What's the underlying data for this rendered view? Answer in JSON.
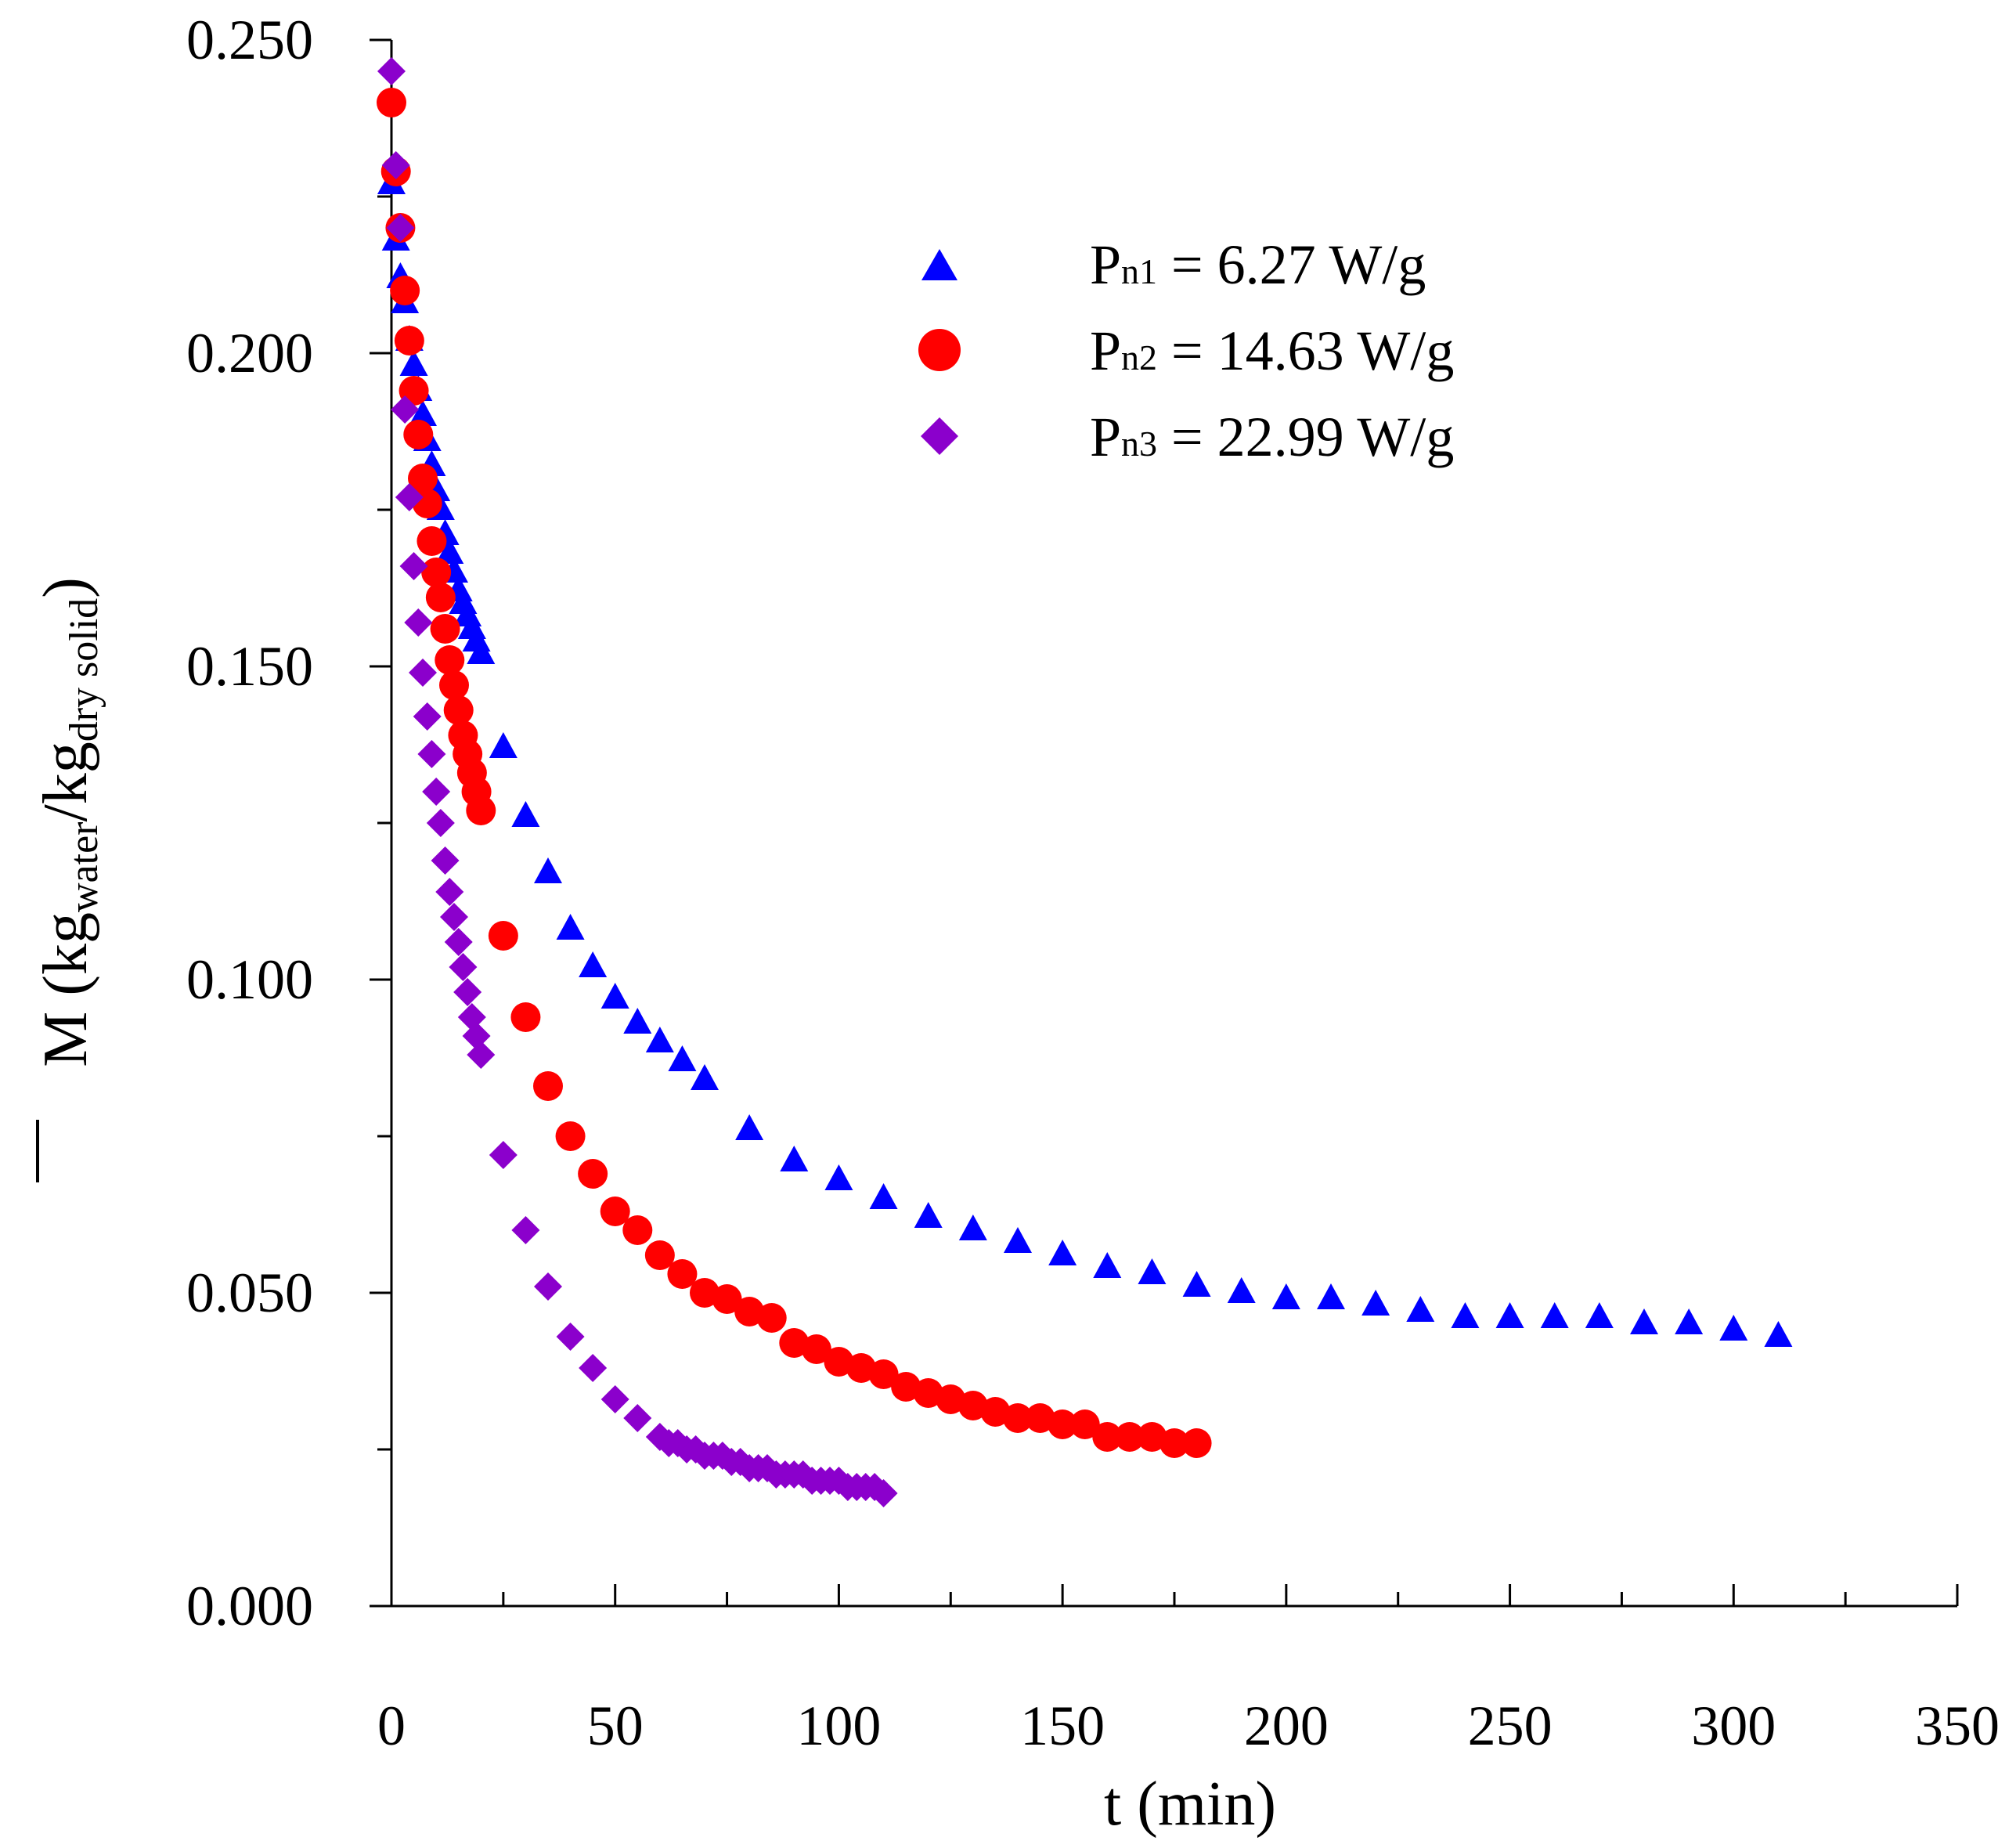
{
  "chart_data": {
    "type": "scatter",
    "title": "",
    "xlabel": "t (min)",
    "ylabel": {
      "main": "M",
      "open": "(kg",
      "sub1": "water",
      "mid": "/kg",
      "sub2": "dry solid",
      "close": ")"
    },
    "xlim": [
      0,
      350
    ],
    "ylim": [
      0,
      0.25
    ],
    "x_ticks": [
      {
        "value": 0,
        "label": "0"
      },
      {
        "value": 50,
        "label": "50"
      },
      {
        "value": 100,
        "label": "100"
      },
      {
        "value": 150,
        "label": "150"
      },
      {
        "value": 200,
        "label": "200"
      },
      {
        "value": 250,
        "label": "250"
      },
      {
        "value": 300,
        "label": "300"
      },
      {
        "value": 350,
        "label": "350"
      }
    ],
    "x_minor_step": 25,
    "y_ticks": [
      {
        "value": 0.0,
        "label": "0.000"
      },
      {
        "value": 0.05,
        "label": "0.050"
      },
      {
        "value": 0.1,
        "label": "0.100"
      },
      {
        "value": 0.15,
        "label": "0.150"
      },
      {
        "value": 0.2,
        "label": "0.200"
      },
      {
        "value": 0.25,
        "label": "0.250"
      }
    ],
    "y_minor_step": 0.025,
    "grid": false,
    "legend_position": "top-right",
    "series": [
      {
        "name": "Pn1 = 6.27 W/g",
        "label_main": "P",
        "label_sub": "n1",
        "label_rest": " = 6.27 W/g",
        "marker": "triangle",
        "color": "#0000ff",
        "x": [
          0,
          1,
          2,
          3,
          4,
          5,
          6,
          7,
          8,
          9,
          10,
          11,
          12,
          13,
          14,
          15,
          16,
          17,
          18,
          19,
          20,
          25,
          30,
          35,
          40,
          45,
          50,
          55,
          60,
          65,
          70,
          80,
          90,
          100,
          110,
          120,
          130,
          140,
          150,
          160,
          170,
          180,
          190,
          200,
          210,
          220,
          230,
          240,
          250,
          260,
          270,
          280,
          290,
          300,
          310
        ],
        "y": [
          0.227,
          0.218,
          0.212,
          0.208,
          0.202,
          0.198,
          0.194,
          0.19,
          0.186,
          0.182,
          0.178,
          0.175,
          0.171,
          0.168,
          0.165,
          0.162,
          0.16,
          0.158,
          0.156,
          0.154,
          0.152,
          0.137,
          0.126,
          0.117,
          0.108,
          0.102,
          0.097,
          0.093,
          0.09,
          0.087,
          0.084,
          0.076,
          0.071,
          0.068,
          0.065,
          0.062,
          0.06,
          0.058,
          0.056,
          0.054,
          0.053,
          0.051,
          0.05,
          0.049,
          0.049,
          0.048,
          0.047,
          0.046,
          0.046,
          0.046,
          0.046,
          0.045,
          0.045,
          0.044,
          0.043
        ]
      },
      {
        "name": "Pn2 = 14.63 W/g",
        "label_main": "P",
        "label_sub": "n2",
        "label_rest": " = 14.63 W/g",
        "marker": "circle",
        "color": "#ff0000",
        "x": [
          0,
          1,
          2,
          3,
          4,
          5,
          6,
          7,
          8,
          9,
          10,
          11,
          12,
          13,
          14,
          15,
          16,
          17,
          18,
          19,
          20,
          25,
          30,
          35,
          40,
          45,
          50,
          55,
          60,
          65,
          70,
          75,
          80,
          85,
          90,
          95,
          100,
          105,
          110,
          115,
          120,
          125,
          130,
          135,
          140,
          145,
          150,
          155,
          160,
          165,
          170,
          175,
          180
        ],
        "y": [
          0.24,
          0.229,
          0.22,
          0.21,
          0.202,
          0.194,
          0.187,
          0.18,
          0.176,
          0.17,
          0.165,
          0.161,
          0.156,
          0.151,
          0.147,
          0.143,
          0.139,
          0.136,
          0.133,
          0.13,
          0.127,
          0.107,
          0.094,
          0.083,
          0.075,
          0.069,
          0.063,
          0.06,
          0.056,
          0.053,
          0.05,
          0.049,
          0.047,
          0.046,
          0.042,
          0.041,
          0.039,
          0.038,
          0.037,
          0.035,
          0.034,
          0.033,
          0.032,
          0.031,
          0.03,
          0.03,
          0.029,
          0.029,
          0.027,
          0.027,
          0.027,
          0.026,
          0.026
        ]
      },
      {
        "name": "Pn3 = 22.99 W/g",
        "label_main": "P",
        "label_sub": "n3",
        "label_rest": " = 22.99 W/g",
        "marker": "diamond",
        "color": "#8b00cc",
        "x": [
          0,
          1,
          2,
          3,
          4,
          5,
          6,
          7,
          8,
          9,
          10,
          11,
          12,
          13,
          14,
          15,
          16,
          17,
          18,
          19,
          20,
          25,
          30,
          35,
          40,
          45,
          50,
          55,
          60,
          62,
          64,
          66,
          68,
          70,
          72,
          74,
          76,
          78,
          80,
          82,
          84,
          86,
          88,
          90,
          92,
          94,
          96,
          98,
          100,
          102,
          104,
          106,
          108,
          110
        ],
        "y": [
          0.245,
          0.23,
          0.22,
          0.191,
          0.177,
          0.166,
          0.157,
          0.149,
          0.142,
          0.136,
          0.13,
          0.125,
          0.119,
          0.114,
          0.11,
          0.106,
          0.102,
          0.098,
          0.094,
          0.091,
          0.088,
          0.072,
          0.06,
          0.051,
          0.043,
          0.038,
          0.033,
          0.03,
          0.027,
          0.026,
          0.026,
          0.025,
          0.025,
          0.024,
          0.024,
          0.024,
          0.023,
          0.023,
          0.022,
          0.022,
          0.022,
          0.021,
          0.021,
          0.021,
          0.021,
          0.02,
          0.02,
          0.02,
          0.02,
          0.019,
          0.019,
          0.019,
          0.019,
          0.018
        ]
      }
    ]
  }
}
